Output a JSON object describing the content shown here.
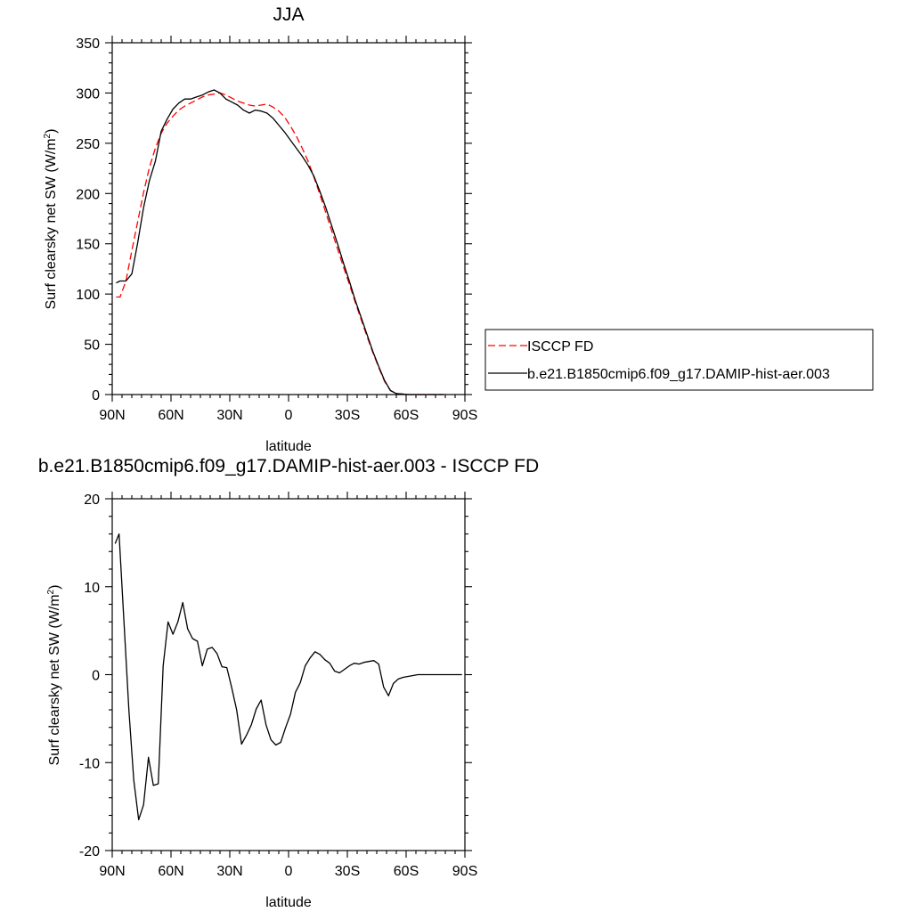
{
  "chart_data": [
    {
      "type": "line",
      "title": "JJA",
      "xlabel": "latitude",
      "ylabel": "Surf clearsky net SW (W/m",
      "ylabel_sup": "2",
      "ylabel_tail": ")",
      "xlim": [
        90,
        -90
      ],
      "ylim": [
        0,
        350
      ],
      "xticks": [
        {
          "value": 90,
          "label": "90N"
        },
        {
          "value": 60,
          "label": "60N"
        },
        {
          "value": 30,
          "label": "30N"
        },
        {
          "value": 0,
          "label": "0"
        },
        {
          "value": -30,
          "label": "30S"
        },
        {
          "value": -60,
          "label": "60S"
        },
        {
          "value": -90,
          "label": "90S"
        }
      ],
      "yticks": [
        0,
        50,
        100,
        150,
        200,
        250,
        300,
        350
      ],
      "grid": false,
      "legend_position": "right",
      "series": [
        {
          "name": "ISCCP FD",
          "color": "#ff0000",
          "dash": "dashed",
          "x": [
            88,
            86,
            83,
            80,
            77,
            74,
            71,
            68,
            65,
            62,
            59,
            56,
            53,
            50,
            47,
            44,
            41,
            38,
            35,
            32,
            29,
            26,
            23,
            20,
            17,
            14,
            11,
            8,
            5,
            2,
            -1,
            -4,
            -7,
            -10,
            -13,
            -16,
            -19,
            -22,
            -25,
            -28,
            -31,
            -34,
            -37,
            -40,
            -43,
            -46,
            -49,
            -52,
            -55,
            -58,
            -61,
            -64,
            -67,
            -70,
            -73,
            -76,
            -79
          ],
          "y": [
            97,
            97,
            113,
            143,
            172,
            201,
            226,
            245,
            260,
            270,
            277,
            283,
            287,
            290,
            293,
            296,
            298,
            299,
            300,
            298,
            295,
            292,
            290,
            288,
            287,
            288,
            289,
            286,
            282,
            276,
            267,
            257,
            245,
            232,
            216,
            199,
            181,
            163,
            145,
            127,
            110,
            92,
            75,
            58,
            42,
            27,
            13,
            4,
            1,
            0.5,
            0,
            0,
            0,
            0,
            0,
            0,
            0
          ]
        },
        {
          "name": "b.e21.B1850cmip6.f09_g17.DAMIP-hist-aer.003",
          "color": "#000000",
          "dash": "solid",
          "x": [
            88,
            86,
            83,
            80,
            77,
            74,
            71,
            68,
            65,
            62,
            59,
            56,
            53,
            50,
            47,
            44,
            41,
            38,
            35,
            32,
            29,
            26,
            23,
            20,
            17,
            14,
            11,
            8,
            5,
            2,
            -1,
            -4,
            -7,
            -10,
            -13,
            -16,
            -19,
            -22,
            -25,
            -28,
            -31,
            -34,
            -37,
            -40,
            -43,
            -46,
            -49,
            -52,
            -55,
            -58,
            -61,
            -64,
            -67,
            -70,
            -73,
            -76,
            -79
          ],
          "y": [
            111,
            113,
            113,
            120,
            151,
            186,
            213,
            232,
            262,
            274,
            284,
            290,
            294,
            294,
            296,
            298,
            301,
            303,
            300,
            294,
            291,
            288,
            283,
            280,
            283,
            282,
            280,
            275,
            268,
            261,
            253,
            245,
            237,
            228,
            217,
            202,
            186,
            168,
            150,
            131,
            113,
            94,
            77,
            60,
            43,
            28,
            14,
            4,
            1,
            0.5,
            0,
            0,
            0,
            0,
            0,
            0,
            0
          ]
        }
      ]
    },
    {
      "type": "line",
      "title": "b.e21.B1850cmip6.f09_g17.DAMIP-hist-aer.003 - ISCCP FD",
      "xlabel": "latitude",
      "ylabel": "Surf clearsky net SW (W/m",
      "ylabel_sup": "2",
      "ylabel_tail": ")",
      "xlim": [
        90,
        -90
      ],
      "ylim": [
        -20,
        20
      ],
      "xticks": [
        {
          "value": 90,
          "label": "90N"
        },
        {
          "value": 60,
          "label": "60N"
        },
        {
          "value": 30,
          "label": "30N"
        },
        {
          "value": 0,
          "label": "0"
        },
        {
          "value": -30,
          "label": "30S"
        },
        {
          "value": -60,
          "label": "60S"
        },
        {
          "value": -90,
          "label": "90S"
        }
      ],
      "yticks": [
        -20,
        -10,
        0,
        10,
        20
      ],
      "grid": false,
      "series": [
        {
          "color": "#000000",
          "dash": "solid",
          "x": [
            88.5,
            86.5,
            84,
            81.5,
            79,
            76.5,
            74,
            71.5,
            69,
            66.5,
            64,
            61.5,
            59,
            56.5,
            54,
            51.5,
            49,
            46.5,
            44,
            41.5,
            39,
            36.5,
            34,
            31.5,
            29,
            26.5,
            24,
            21.5,
            19,
            16.5,
            14,
            11.5,
            9,
            6.5,
            4,
            1.5,
            -1,
            -3.5,
            -6,
            -8.5,
            -11,
            -13.5,
            -16,
            -18.5,
            -21,
            -23.5,
            -26,
            -28.5,
            -31,
            -33.5,
            -36,
            -38.5,
            -41,
            -43.5,
            -46,
            -48.5,
            -51,
            -53.5,
            -56,
            -58.5,
            -61,
            -63.5,
            -66,
            -68.5,
            -71,
            -73.5,
            -76,
            -78.5,
            -81,
            -83.5,
            -86,
            -88.5
          ],
          "y": [
            14.9,
            16.0,
            6.0,
            -4.0,
            -12.0,
            -16.5,
            -14.8,
            -9.4,
            -12.6,
            -12.4,
            1.0,
            6.0,
            4.6,
            6.0,
            8.2,
            5.2,
            4.1,
            3.8,
            1.0,
            2.9,
            3.1,
            2.4,
            0.9,
            0.8,
            -1.5,
            -4.0,
            -7.9,
            -6.9,
            -5.7,
            -3.9,
            -2.9,
            -5.7,
            -7.4,
            -8.0,
            -7.7,
            -6.0,
            -4.5,
            -2.0,
            -0.9,
            1.0,
            1.9,
            2.6,
            2.3,
            1.7,
            1.3,
            0.4,
            0.2,
            0.6,
            1.0,
            1.3,
            1.2,
            1.4,
            1.5,
            1.6,
            1.2,
            -1.4,
            -2.4,
            -1.0,
            -0.5,
            -0.3,
            -0.2,
            -0.1,
            0,
            0,
            0,
            0,
            0,
            0,
            0,
            0,
            0,
            0
          ]
        }
      ]
    }
  ]
}
